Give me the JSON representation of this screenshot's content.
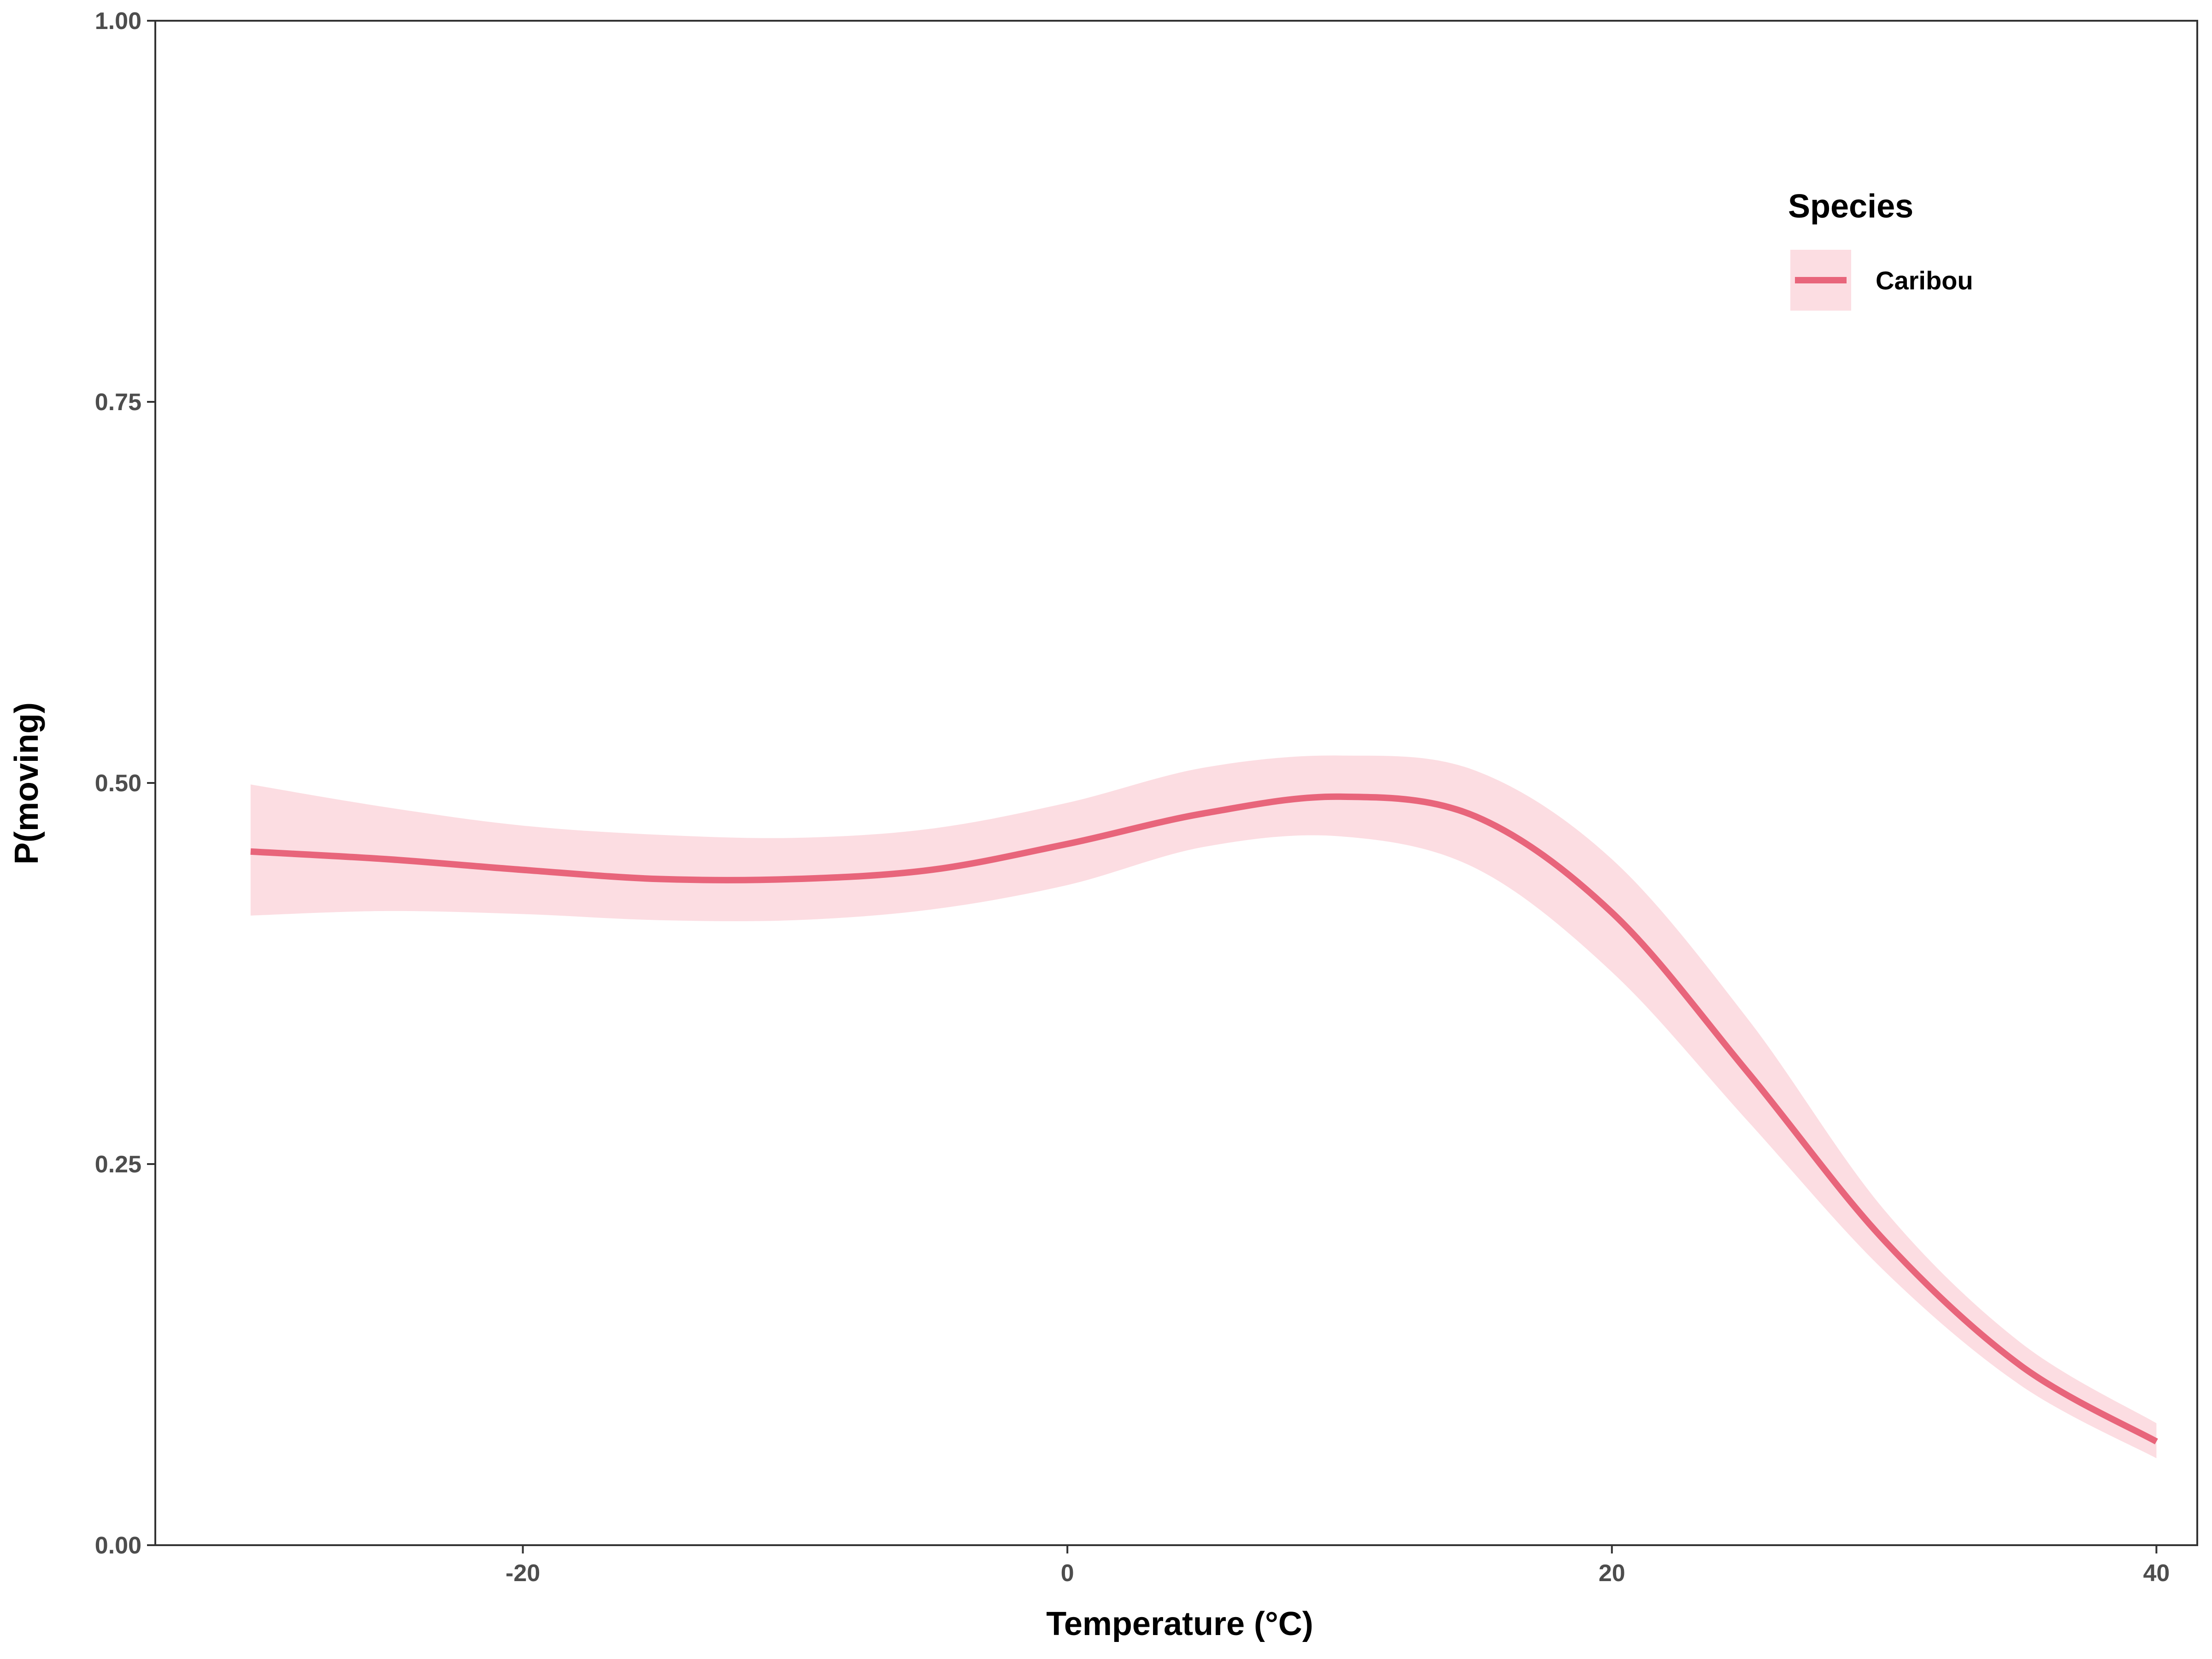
{
  "chart_data": {
    "type": "line",
    "xlabel": "Temperature (°C)",
    "ylabel": "P(moving)",
    "xlim": [
      -33.5,
      41.5
    ],
    "ylim": [
      0,
      1
    ],
    "x_ticks": [
      -20,
      0,
      20,
      40
    ],
    "x_tick_labels": [
      "-20",
      "0",
      "20",
      "40"
    ],
    "y_ticks": [
      0,
      0.25,
      0.5,
      0.75,
      1
    ],
    "y_tick_labels": [
      "0.00",
      "0.25",
      "0.50",
      "0.75",
      "1.00"
    ],
    "grid": false,
    "legend": {
      "title": "Species",
      "position": "top-right"
    },
    "series": [
      {
        "name": "Caribou",
        "color": "#e8657b",
        "ribbon_color": "#fcdde2",
        "x": [
          -30,
          -25,
          -20,
          -15,
          -10,
          -5,
          0,
          5,
          10,
          15,
          20,
          25,
          30,
          35,
          40
        ],
        "y": [
          0.455,
          0.45,
          0.443,
          0.437,
          0.437,
          0.443,
          0.46,
          0.48,
          0.491,
          0.478,
          0.415,
          0.31,
          0.2,
          0.118,
          0.068
        ],
        "lower": [
          0.413,
          0.416,
          0.414,
          0.41,
          0.41,
          0.417,
          0.433,
          0.458,
          0.465,
          0.444,
          0.376,
          0.278,
          0.18,
          0.105,
          0.057
        ],
        "upper": [
          0.499,
          0.484,
          0.472,
          0.466,
          0.464,
          0.47,
          0.487,
          0.51,
          0.518,
          0.508,
          0.45,
          0.345,
          0.22,
          0.133,
          0.08
        ]
      }
    ]
  }
}
